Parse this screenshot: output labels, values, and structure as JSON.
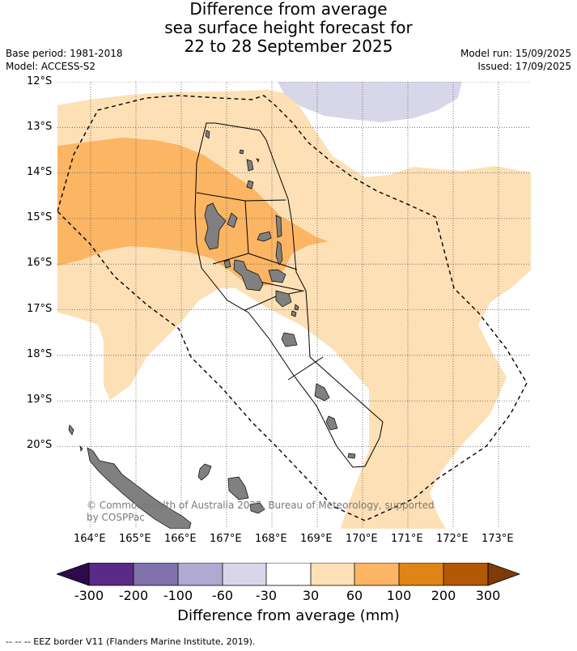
{
  "title": {
    "line1": "Difference from average",
    "line2": "sea surface height forecast for",
    "line3": "22 to 28 September 2025"
  },
  "meta": {
    "base_period": "Base period: 1981-2018",
    "model": "Model: ACCESS-S2",
    "model_run": "Model run: 15/09/2025",
    "issued": "Issued: 17/09/2025"
  },
  "lat_labels": [
    "12°S",
    "13°S",
    "14°S",
    "15°S",
    "16°S",
    "17°S",
    "18°S",
    "19°S",
    "20°S"
  ],
  "lon_labels": [
    "164°E",
    "165°E",
    "166°E",
    "167°E",
    "168°E",
    "169°E",
    "170°E",
    "171°E",
    "172°E",
    "173°E"
  ],
  "credit": "© Commonwealth of Australia 2025, Bureau of Meteorology, supported by COSPPac",
  "colorbar": {
    "labels": [
      "-300",
      "-200",
      "-100",
      "-60",
      "-30",
      "30",
      "60",
      "100",
      "200",
      "300"
    ],
    "colors": [
      "#2d0a4e",
      "#5b2a86",
      "#8071ad",
      "#b1a9d1",
      "#d8d7ea",
      "#ffffff",
      "#fde0b5",
      "#fbb563",
      "#e18416",
      "#b35807",
      "#7f3b08"
    ],
    "title": "Difference from average (mm)"
  },
  "footer": "--  --  -- EEZ border V11 (Flanders Marine Institute, 2019)."
}
